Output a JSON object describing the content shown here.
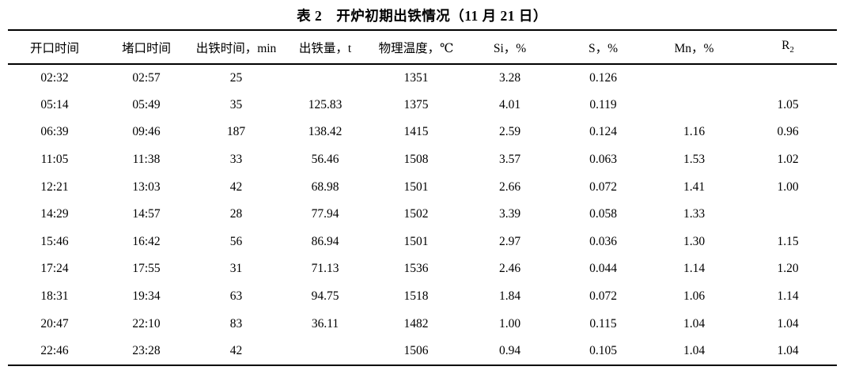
{
  "title": "表 2　开炉初期出铁情况（11 月 21 日）",
  "table": {
    "headers": [
      "开口时间",
      "堵口时间",
      "出铁时间，min",
      "出铁量，t",
      "物理温度，℃",
      "Si，%",
      "S，%",
      "Mn，%"
    ],
    "r2_header": {
      "base": "R",
      "sub": "2"
    },
    "rows": [
      [
        "02:32",
        "02:57",
        "25",
        "",
        "1351",
        "3.28",
        "0.126",
        "",
        ""
      ],
      [
        "05:14",
        "05:49",
        "35",
        "125.83",
        "1375",
        "4.01",
        "0.119",
        "",
        "1.05"
      ],
      [
        "06:39",
        "09:46",
        "187",
        "138.42",
        "1415",
        "2.59",
        "0.124",
        "1.16",
        "0.96"
      ],
      [
        "11:05",
        "11:38",
        "33",
        "56.46",
        "1508",
        "3.57",
        "0.063",
        "1.53",
        "1.02"
      ],
      [
        "12:21",
        "13:03",
        "42",
        "68.98",
        "1501",
        "2.66",
        "0.072",
        "1.41",
        "1.00"
      ],
      [
        "14:29",
        "14:57",
        "28",
        "77.94",
        "1502",
        "3.39",
        "0.058",
        "1.33",
        ""
      ],
      [
        "15:46",
        "16:42",
        "56",
        "86.94",
        "1501",
        "2.97",
        "0.036",
        "1.30",
        "1.15"
      ],
      [
        "17:24",
        "17:55",
        "31",
        "71.13",
        "1536",
        "2.46",
        "0.044",
        "1.14",
        "1.20"
      ],
      [
        "18:31",
        "19:34",
        "63",
        "94.75",
        "1518",
        "1.84",
        "0.072",
        "1.06",
        "1.14"
      ],
      [
        "20:47",
        "22:10",
        "83",
        "36.11",
        "1482",
        "1.00",
        "0.115",
        "1.04",
        "1.04"
      ],
      [
        "22:46",
        "23:28",
        "42",
        "",
        "1506",
        "0.94",
        "0.105",
        "1.04",
        "1.04"
      ]
    ],
    "text_color": "#000000",
    "rule_color": "#000000"
  }
}
